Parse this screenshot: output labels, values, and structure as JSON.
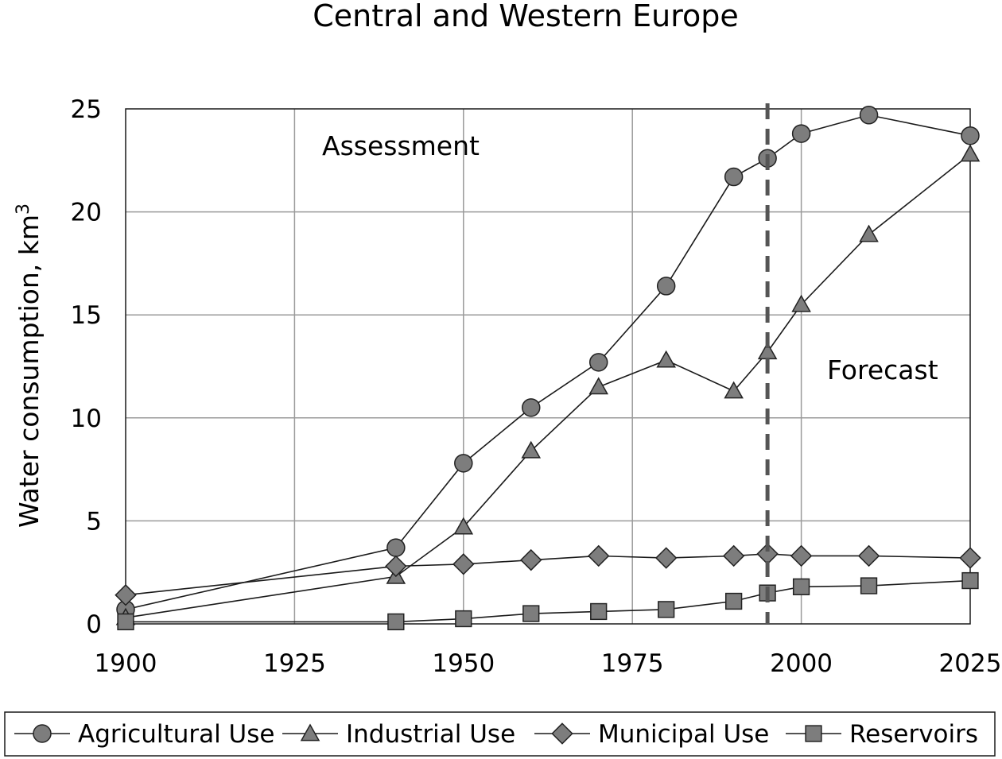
{
  "chart_data": {
    "type": "line",
    "title": "Central and Western Europe",
    "ylabel": "Water consumption, km",
    "ylabel_sup": "3",
    "xlabel": "",
    "xlim": [
      1900,
      2025
    ],
    "ylim": [
      0,
      25
    ],
    "xticks": [
      "1900",
      "1925",
      "1950",
      "1975",
      "2000",
      "2025"
    ],
    "yticks": [
      "0",
      "5",
      "10",
      "15",
      "20",
      "25"
    ],
    "grid": true,
    "legend_position": "bottom",
    "divider_x": 1995,
    "annotations": [
      {
        "text": "Assessment",
        "region": "left"
      },
      {
        "text": "Forecast",
        "region": "right"
      }
    ],
    "series": [
      {
        "name": "Agricultural Use",
        "marker": "circle",
        "x": [
          1900,
          1940,
          1950,
          1960,
          1970,
          1980,
          1990,
          1995,
          2000,
          2010,
          2025
        ],
        "y": [
          0.7,
          3.7,
          7.8,
          10.5,
          12.7,
          16.4,
          21.7,
          22.6,
          23.8,
          24.7,
          23.7
        ]
      },
      {
        "name": "Industrial Use",
        "marker": "triangle",
        "x": [
          1900,
          1940,
          1950,
          1960,
          1970,
          1980,
          1990,
          1995,
          2000,
          2010,
          2025
        ],
        "y": [
          0.3,
          2.3,
          4.7,
          8.4,
          11.5,
          12.8,
          11.3,
          13.2,
          15.5,
          18.9,
          22.8
        ]
      },
      {
        "name": "Municipal Use",
        "marker": "diamond",
        "x": [
          1900,
          1940,
          1950,
          1960,
          1970,
          1980,
          1990,
          1995,
          2000,
          2010,
          2025
        ],
        "y": [
          1.4,
          2.8,
          2.9,
          3.1,
          3.3,
          3.2,
          3.3,
          3.4,
          3.3,
          3.3,
          3.2
        ]
      },
      {
        "name": "Reservoirs",
        "marker": "square",
        "x": [
          1900,
          1940,
          1950,
          1960,
          1970,
          1980,
          1990,
          1995,
          2000,
          2010,
          2025
        ],
        "y": [
          0.1,
          0.1,
          0.25,
          0.5,
          0.6,
          0.7,
          1.1,
          1.5,
          1.8,
          1.85,
          2.1
        ]
      }
    ],
    "colors": {
      "marker_fill": "#7d7d7d",
      "marker_stroke": "#222222",
      "line": "#1a1a1a",
      "grid": "#9a9a9a",
      "divider": "#555555"
    }
  }
}
